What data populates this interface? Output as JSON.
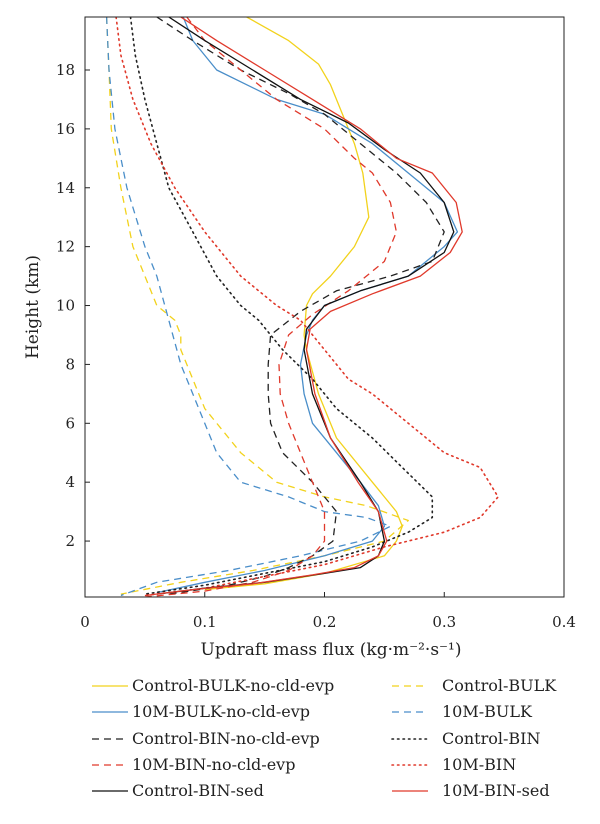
{
  "chart_data": {
    "type": "line",
    "xlabel": "Updraft mass flux (kg·m⁻²·s⁻¹)",
    "ylabel": "Height (km)",
    "xlim": [
      0,
      0.4
    ],
    "ylim": [
      0.1,
      19.8
    ],
    "xticks": [
      "0",
      "0.1",
      "0.2",
      "0.3",
      "0.4"
    ],
    "yticks": [
      "2",
      "4",
      "6",
      "8",
      "10",
      "12",
      "14",
      "16",
      "18"
    ],
    "grid": false,
    "legend_position": "below",
    "series": [
      {
        "name": "Control-BULK-no-cld-evp",
        "color": "#f2d21c",
        "dash": "solid",
        "x": [
          0.135,
          0.17,
          0.195,
          0.205,
          0.215,
          0.225,
          0.232,
          0.237,
          0.225,
          0.205,
          0.19,
          0.185,
          0.183,
          0.185,
          0.195,
          0.21,
          0.24,
          0.26,
          0.265,
          0.26,
          0.25,
          0.2,
          0.15,
          0.1
        ],
        "y": [
          19.8,
          19,
          18.2,
          17.5,
          16.5,
          15.5,
          14.5,
          13,
          12,
          11,
          10.4,
          10,
          9,
          8.5,
          7,
          5.5,
          4,
          3,
          2.5,
          2,
          1.5,
          0.9,
          0.55,
          0.35
        ]
      },
      {
        "name": "Control-BULK",
        "color": "#f2d21c",
        "dash": "dash",
        "x": [
          0.018,
          0.02,
          0.022,
          0.03,
          0.04,
          0.05,
          0.06,
          0.075,
          0.08,
          0.08,
          0.085,
          0.1,
          0.13,
          0.16,
          0.2,
          0.235,
          0.27,
          0.25,
          0.2,
          0.14,
          0.08,
          0.03
        ],
        "y": [
          19.8,
          18,
          16,
          14,
          12,
          11,
          10,
          9.5,
          9,
          8.5,
          8,
          6.5,
          5,
          4,
          3.5,
          3.2,
          2.7,
          2,
          1.5,
          1,
          0.6,
          0.2
        ]
      },
      {
        "name": "10M-BULK-no-cld-evp",
        "color": "#4a8ec9",
        "dash": "solid",
        "x": [
          0.082,
          0.09,
          0.11,
          0.16,
          0.2,
          0.24,
          0.27,
          0.3,
          0.311,
          0.3,
          0.27,
          0.23,
          0.2,
          0.19,
          0.185,
          0.18,
          0.183,
          0.19,
          0.21,
          0.23,
          0.245,
          0.25,
          0.24,
          0.2,
          0.15,
          0.1,
          0.06
        ],
        "y": [
          19.8,
          19,
          18,
          17,
          16.5,
          15.5,
          14.5,
          13.5,
          12.5,
          12,
          11,
          10.5,
          10,
          9.5,
          9,
          8,
          7,
          6,
          5,
          4,
          3.2,
          2.5,
          2,
          1.5,
          1,
          0.6,
          0.25
        ]
      },
      {
        "name": "10M-BULK",
        "color": "#4a8ec9",
        "dash": "dash",
        "x": [
          0.018,
          0.02,
          0.025,
          0.035,
          0.05,
          0.06,
          0.07,
          0.08,
          0.095,
          0.11,
          0.13,
          0.17,
          0.2,
          0.235,
          0.255,
          0.23,
          0.18,
          0.12,
          0.06,
          0.03
        ],
        "y": [
          19.8,
          18,
          16,
          14,
          12,
          11,
          9.5,
          8,
          6.5,
          5,
          4,
          3.5,
          3,
          2.8,
          2.5,
          2,
          1.5,
          1,
          0.6,
          0.15
        ]
      },
      {
        "name": "Control-BIN-no-cld-evp",
        "color": "#222222",
        "dash": "dash",
        "x": [
          0.06,
          0.09,
          0.13,
          0.17,
          0.2,
          0.23,
          0.26,
          0.285,
          0.3,
          0.29,
          0.255,
          0.21,
          0.18,
          0.155,
          0.153,
          0.153,
          0.155,
          0.165,
          0.19,
          0.21,
          0.207,
          0.19,
          0.17,
          0.15,
          0.12,
          0.07
        ],
        "y": [
          19.8,
          19,
          18,
          17.2,
          16.5,
          15.5,
          14.5,
          13.5,
          12.5,
          11.5,
          11,
          10.5,
          9.8,
          9,
          8,
          7,
          6,
          5,
          4,
          3,
          2,
          1.5,
          1.1,
          0.8,
          0.5,
          0.2
        ]
      },
      {
        "name": "Control-BIN",
        "color": "#222222",
        "dash": "dot",
        "x": [
          0.038,
          0.042,
          0.05,
          0.06,
          0.07,
          0.09,
          0.11,
          0.13,
          0.145,
          0.165,
          0.19,
          0.21,
          0.24,
          0.265,
          0.29,
          0.29,
          0.27,
          0.24,
          0.2,
          0.15,
          0.1,
          0.05
        ],
        "y": [
          19.8,
          18.5,
          17,
          15.5,
          14,
          12.5,
          11,
          10,
          9.5,
          8.5,
          7.5,
          6.5,
          5.5,
          4.5,
          3.5,
          2.8,
          2.3,
          1.8,
          1.3,
          0.9,
          0.5,
          0.2
        ]
      },
      {
        "name": "10M-BIN-no-cld-evp",
        "color": "#e0392b",
        "dash": "dash",
        "x": [
          0.085,
          0.1,
          0.13,
          0.16,
          0.2,
          0.225,
          0.24,
          0.255,
          0.26,
          0.25,
          0.22,
          0.19,
          0.17,
          0.162,
          0.163,
          0.17,
          0.18,
          0.19,
          0.2,
          0.2,
          0.19,
          0.17,
          0.14,
          0.1,
          0.05
        ],
        "y": [
          19.8,
          19,
          18,
          17,
          16,
          15,
          14.5,
          13.5,
          12.5,
          11.5,
          10.5,
          9.7,
          9,
          8,
          7,
          6,
          5,
          4,
          3,
          2,
          1.5,
          1,
          0.6,
          0.3,
          0.1
        ]
      },
      {
        "name": "10M-BIN",
        "color": "#e0392b",
        "dash": "dot",
        "x": [
          0.026,
          0.03,
          0.04,
          0.055,
          0.075,
          0.1,
          0.13,
          0.16,
          0.18,
          0.2,
          0.22,
          0.24,
          0.27,
          0.3,
          0.33,
          0.345,
          0.33,
          0.3,
          0.25,
          0.2,
          0.15,
          0.1,
          0.05
        ],
        "y": [
          19.8,
          18.5,
          17,
          15.5,
          14,
          12.5,
          11,
          10,
          9.5,
          8.5,
          7.5,
          7,
          6,
          5,
          4.5,
          3.5,
          2.8,
          2.3,
          1.8,
          1.2,
          0.8,
          0.4,
          0.15
        ]
      },
      {
        "name": "Control-BIN-sed",
        "color": "#111111",
        "dash": "solid",
        "x": [
          0.07,
          0.1,
          0.14,
          0.18,
          0.22,
          0.25,
          0.28,
          0.3,
          0.308,
          0.3,
          0.27,
          0.23,
          0.2,
          0.185,
          0.183,
          0.19,
          0.205,
          0.23,
          0.245,
          0.25,
          0.245,
          0.23,
          0.2,
          0.15,
          0.1,
          0.06
        ],
        "y": [
          19.8,
          19,
          18,
          17,
          16.2,
          15.3,
          14.5,
          13.5,
          12.5,
          11.8,
          11,
          10.5,
          10,
          9.2,
          8.5,
          7,
          5.5,
          4,
          3,
          2,
          1.5,
          1.1,
          0.9,
          0.6,
          0.4,
          0.2
        ]
      },
      {
        "name": "10M-BIN-sed",
        "color": "#e0392b",
        "dash": "solid",
        "x": [
          0.08,
          0.11,
          0.15,
          0.19,
          0.23,
          0.26,
          0.29,
          0.31,
          0.315,
          0.305,
          0.28,
          0.24,
          0.205,
          0.188,
          0.185,
          0.192,
          0.205,
          0.228,
          0.245,
          0.252,
          0.245,
          0.225,
          0.19,
          0.14,
          0.09,
          0.05
        ],
        "y": [
          19.8,
          19,
          18,
          17,
          16,
          15,
          14.5,
          13.5,
          12.5,
          11.8,
          11,
          10.4,
          9.8,
          9.2,
          8.5,
          7,
          5.5,
          4,
          3,
          2,
          1.5,
          1.1,
          0.85,
          0.55,
          0.35,
          0.15
        ]
      }
    ]
  }
}
